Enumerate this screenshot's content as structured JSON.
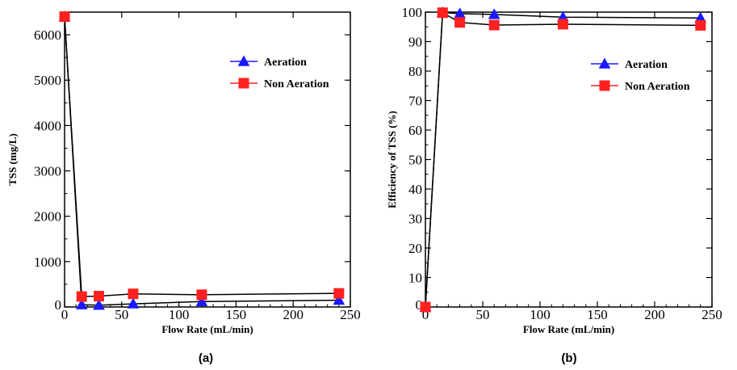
{
  "chart_data": [
    {
      "type": "line",
      "panel_label": "(a)",
      "title": "",
      "xlabel": "Flow Rate (mL/min)",
      "ylabel": "TSS (mg/L)",
      "xlim": [
        0,
        250
      ],
      "ylim": [
        0,
        6500
      ],
      "xticks": [
        0,
        50,
        100,
        150,
        200,
        250
      ],
      "yticks": [
        0,
        1000,
        2000,
        3000,
        4000,
        5000,
        6000
      ],
      "grid": false,
      "legend_position": "upper-right",
      "series": [
        {
          "name": "Aeration",
          "color": "#1a1aff",
          "marker": "triangle",
          "x": [
            0,
            15,
            30,
            60,
            120,
            240
          ],
          "y": [
            6400,
            50,
            40,
            70,
            120,
            150
          ]
        },
        {
          "name": "Non Aeration",
          "color": "#ff2020",
          "marker": "square",
          "x": [
            0,
            15,
            30,
            60,
            120,
            240
          ],
          "y": [
            6400,
            230,
            240,
            290,
            270,
            300
          ]
        }
      ]
    },
    {
      "type": "line",
      "panel_label": "(b)",
      "title": "",
      "xlabel": "Flow Rate (mL/min)",
      "ylabel": "Efficiency of TSS (%)",
      "xlim": [
        0,
        250
      ],
      "ylim": [
        0,
        100
      ],
      "xticks": [
        0,
        50,
        100,
        150,
        200,
        250
      ],
      "yticks": [
        0,
        10,
        20,
        30,
        40,
        50,
        60,
        70,
        80,
        90,
        100
      ],
      "grid": false,
      "legend_position": "upper-right",
      "series": [
        {
          "name": "Aeration",
          "color": "#1a1aff",
          "marker": "triangle",
          "x": [
            0,
            15,
            30,
            60,
            120,
            240
          ],
          "y": [
            0,
            99.9,
            99.5,
            99.2,
            98.3,
            98.0
          ]
        },
        {
          "name": "Non Aeration",
          "color": "#ff2020",
          "marker": "square",
          "x": [
            0,
            15,
            30,
            60,
            120,
            240
          ],
          "y": [
            0,
            99.8,
            96.5,
            95.6,
            95.9,
            95.5
          ]
        }
      ]
    }
  ]
}
